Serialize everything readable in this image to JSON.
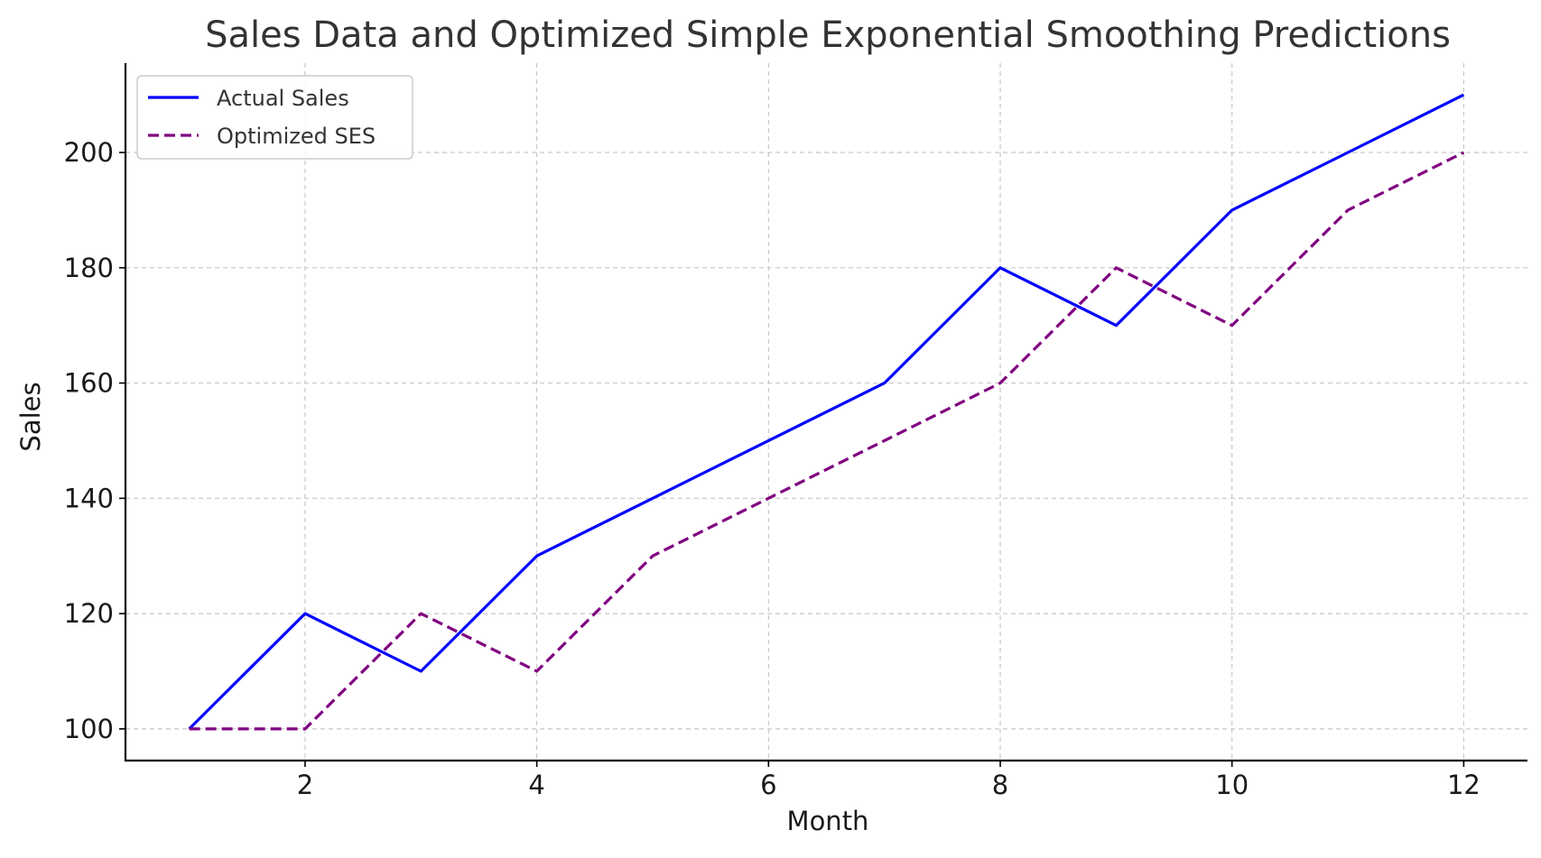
{
  "chart_data": {
    "type": "line",
    "title": "Sales Data and Optimized Simple Exponential Smoothing Predictions",
    "xlabel": "Month",
    "ylabel": "Sales",
    "x": [
      1,
      2,
      3,
      4,
      5,
      6,
      7,
      8,
      9,
      10,
      11,
      12
    ],
    "xlim": [
      0.45,
      12.55
    ],
    "ylim": [
      94.5,
      215.5
    ],
    "xticks": [
      2,
      4,
      6,
      8,
      10,
      12
    ],
    "yticks": [
      100,
      120,
      140,
      160,
      180,
      200
    ],
    "grid": true,
    "legend_position": "top-left",
    "series": [
      {
        "name": "Actual Sales",
        "color": "#0000ff",
        "style": "solid",
        "values": [
          100,
          120,
          110,
          130,
          140,
          150,
          160,
          180,
          170,
          190,
          200,
          210
        ]
      },
      {
        "name": "Optimized SES",
        "color": "#800080",
        "style": "dashed",
        "values": [
          100,
          100,
          120,
          110,
          130,
          140,
          150,
          160,
          180,
          170,
          190,
          200
        ]
      }
    ]
  }
}
